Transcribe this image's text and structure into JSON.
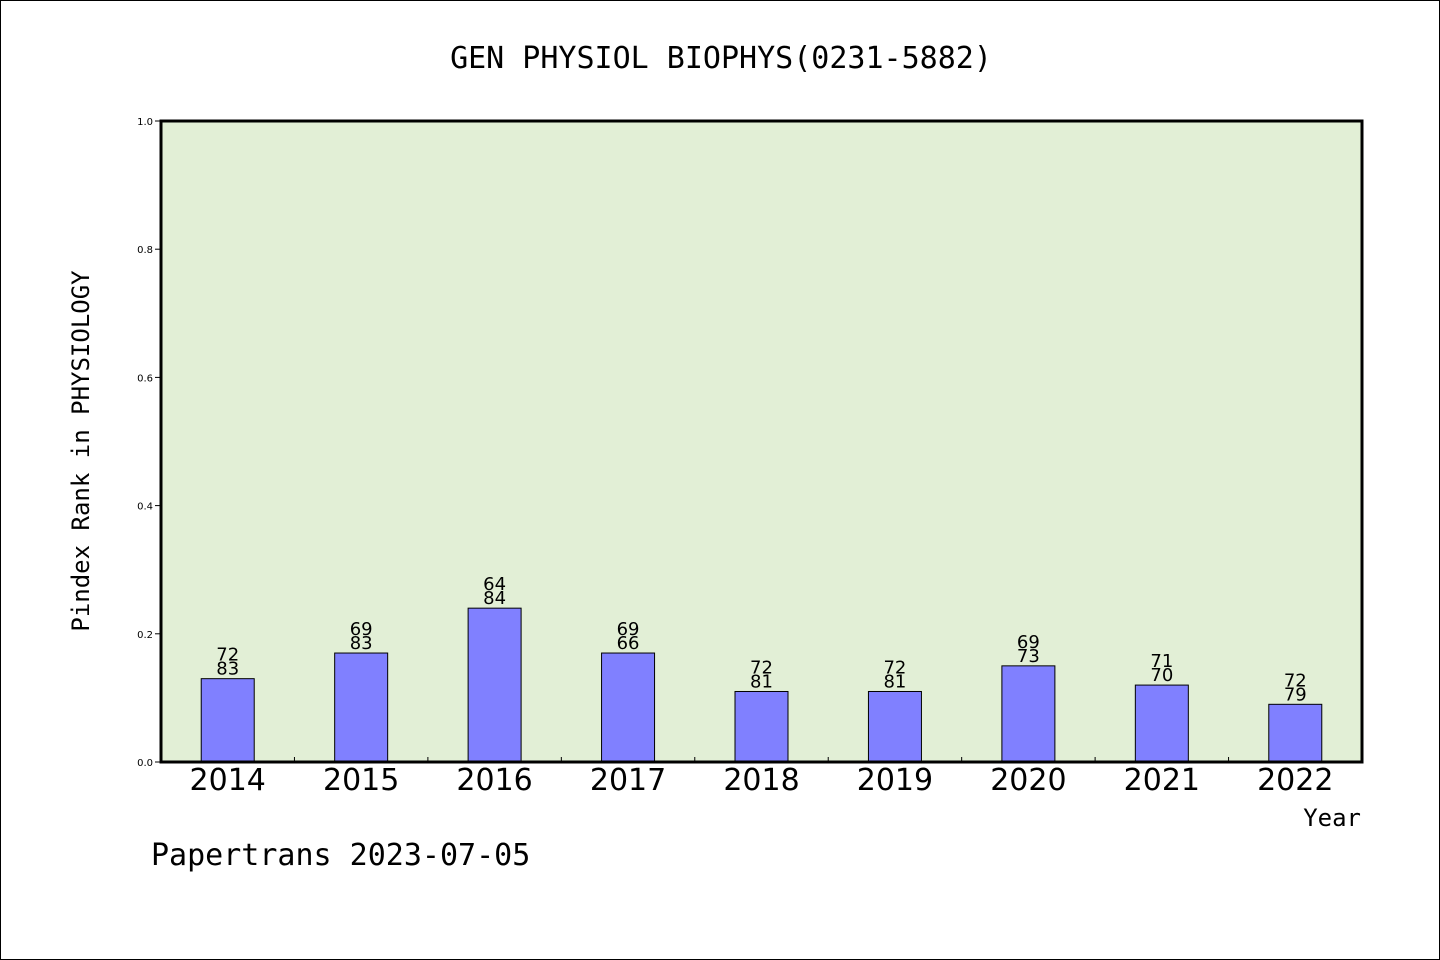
{
  "chart_data": {
    "type": "bar",
    "title": "GEN PHYSIOL BIOPHYS(0231-5882)",
    "xlabel": "Year",
    "ylabel": "Pindex Rank in PHYSIOLOGY",
    "ylim": [
      0,
      1.0
    ],
    "yticks": [
      "0.0",
      "0.2",
      "0.4",
      "0.6",
      "0.8",
      "1.0"
    ],
    "categories": [
      "2014",
      "2015",
      "2016",
      "2017",
      "2018",
      "2019",
      "2020",
      "2021",
      "2022"
    ],
    "values": [
      0.13,
      0.17,
      0.24,
      0.17,
      0.11,
      0.11,
      0.15,
      0.12,
      0.09
    ],
    "label_top": [
      "72",
      "69",
      "64",
      "69",
      "72",
      "72",
      "69",
      "71",
      "72"
    ],
    "label_bottom": [
      "83",
      "83",
      "84",
      "66",
      "81",
      "81",
      "73",
      "70",
      "79"
    ],
    "grid": false,
    "legend": "none",
    "colors": {
      "plot_background": "#e2efd6",
      "bar_fill": "#8080ff",
      "bar_stroke": "#000000"
    }
  },
  "footer": "Papertrans 2023-07-05"
}
